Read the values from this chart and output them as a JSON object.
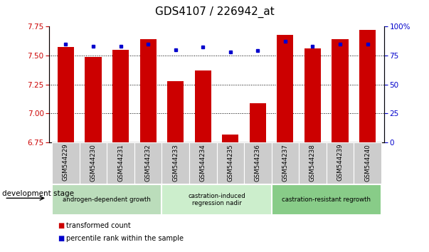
{
  "title": "GDS4107 / 226942_at",
  "samples": [
    "GSM544229",
    "GSM544230",
    "GSM544231",
    "GSM544232",
    "GSM544233",
    "GSM544234",
    "GSM544235",
    "GSM544236",
    "GSM544237",
    "GSM544238",
    "GSM544239",
    "GSM544240"
  ],
  "transformed_count": [
    7.57,
    7.49,
    7.55,
    7.64,
    7.28,
    7.37,
    6.82,
    7.09,
    7.68,
    7.56,
    7.64,
    7.72
  ],
  "percentile_rank": [
    85,
    83,
    83,
    85,
    80,
    82,
    78,
    79,
    87,
    83,
    85,
    85
  ],
  "ylim_left": [
    6.75,
    7.75
  ],
  "ylim_right": [
    0,
    100
  ],
  "yticks_left": [
    6.75,
    7.0,
    7.25,
    7.5,
    7.75
  ],
  "yticks_right": [
    0,
    25,
    50,
    75,
    100
  ],
  "ytick_labels_right": [
    "0",
    "25",
    "50",
    "75",
    "100%"
  ],
  "bar_color": "#cc0000",
  "dot_color": "#0000cc",
  "groups": [
    {
      "label": "androgen-dependent growth",
      "start": 0,
      "end": 3,
      "color": "#bbddbb"
    },
    {
      "label": "castration-induced\nregression nadir",
      "start": 4,
      "end": 7,
      "color": "#cceecc"
    },
    {
      "label": "castration-resistant regrowth",
      "start": 8,
      "end": 11,
      "color": "#88cc88"
    }
  ],
  "xlabel_left": "development stage",
  "legend_items": [
    {
      "label": "transformed count",
      "color": "#cc0000"
    },
    {
      "label": "percentile rank within the sample",
      "color": "#0000cc"
    }
  ],
  "title_fontsize": 11,
  "tick_label_color_left": "#cc0000",
  "tick_label_color_right": "#0000cc",
  "xticklabel_bg": "#cccccc",
  "bar_width": 0.6
}
